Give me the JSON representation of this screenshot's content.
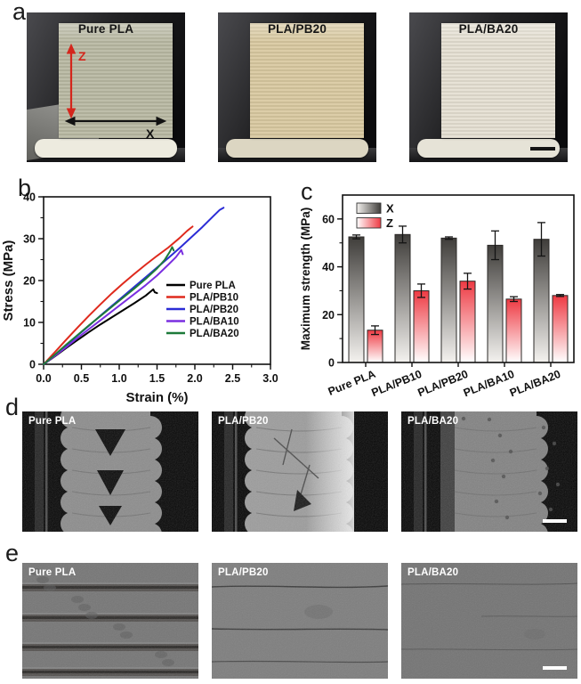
{
  "figure": {
    "background": "#ffffff",
    "panels": {
      "a": {
        "letter": "a",
        "z_arrow_color": "#d4261c",
        "x_arrow_color": "#121212",
        "photos": [
          {
            "title": "Pure PLA",
            "body_color": "#b8b9a3",
            "raft_color": "#edebdf",
            "z_label": "Z",
            "x_label": "X"
          },
          {
            "title": "PLA/PB20",
            "body_color": "#d9c9a1",
            "raft_color": "#dcd6c2"
          },
          {
            "title": "PLA/BA20",
            "body_color": "#e5e0d2",
            "raft_color": "#e6e3d7",
            "has_scale_bar": true
          }
        ]
      },
      "b": {
        "letter": "b"
      },
      "c": {
        "letter": "c"
      },
      "d": {
        "letter": "d",
        "photos": [
          "Pure PLA",
          "PLA/PB20",
          "PLA/BA20"
        ],
        "has_scale_bar": true
      },
      "e": {
        "letter": "e",
        "photos": [
          "Pure PLA",
          "PLA/PB20",
          "PLA/BA20"
        ],
        "has_scale_bar": true
      }
    }
  },
  "chart_data": [
    {
      "id": "stress-strain",
      "type": "line",
      "title": "",
      "xlabel": "Strain (%)",
      "ylabel": "Stress (MPa)",
      "xlim": [
        0,
        3.0
      ],
      "ylim": [
        0,
        40
      ],
      "xticks": [
        "0.0",
        "0.5",
        "1.0",
        "1.5",
        "2.0",
        "2.5",
        "3.0"
      ],
      "yticks": [
        "0",
        "10",
        "20",
        "30",
        "40"
      ],
      "x_minor_step": 0.25,
      "y_minor_step": 5,
      "grid": false,
      "legend_position": "center-right",
      "series": [
        {
          "name": "Pure PLA",
          "color": "#000000",
          "points": [
            [
              0,
              0
            ],
            [
              0.15,
              1.9
            ],
            [
              0.3,
              3.9
            ],
            [
              0.45,
              5.8
            ],
            [
              0.6,
              7.7
            ],
            [
              0.75,
              9.5
            ],
            [
              0.9,
              11.2
            ],
            [
              1.05,
              12.9
            ],
            [
              1.2,
              14.6
            ],
            [
              1.35,
              16.4
            ],
            [
              1.45,
              17.9
            ],
            [
              1.47,
              17.2
            ],
            [
              1.5,
              17.0
            ]
          ]
        },
        {
          "name": "PLA/PB10",
          "color": "#df2a1d",
          "points": [
            [
              0,
              0
            ],
            [
              0.15,
              2.9
            ],
            [
              0.3,
              5.9
            ],
            [
              0.45,
              8.8
            ],
            [
              0.6,
              11.6
            ],
            [
              0.75,
              14.3
            ],
            [
              0.9,
              16.9
            ],
            [
              1.05,
              19.3
            ],
            [
              1.2,
              21.6
            ],
            [
              1.35,
              23.8
            ],
            [
              1.5,
              25.9
            ],
            [
              1.65,
              27.9
            ],
            [
              1.8,
              30.2
            ],
            [
              1.9,
              31.9
            ],
            [
              1.97,
              32.9
            ]
          ]
        },
        {
          "name": "PLA/PB20",
          "color": "#2b2cd6",
          "points": [
            [
              0,
              0
            ],
            [
              0.15,
              2.2
            ],
            [
              0.3,
              4.5
            ],
            [
              0.45,
              6.9
            ],
            [
              0.6,
              9.2
            ],
            [
              0.75,
              11.6
            ],
            [
              0.9,
              13.9
            ],
            [
              1.05,
              16.2
            ],
            [
              1.2,
              18.5
            ],
            [
              1.35,
              20.8
            ],
            [
              1.5,
              23.1
            ],
            [
              1.65,
              25.4
            ],
            [
              1.8,
              27.8
            ],
            [
              1.95,
              30.3
            ],
            [
              2.1,
              32.8
            ],
            [
              2.25,
              35.5
            ],
            [
              2.33,
              36.9
            ],
            [
              2.38,
              37.4
            ]
          ]
        },
        {
          "name": "PLA/BA10",
          "color": "#7a2fe0",
          "points": [
            [
              0,
              0
            ],
            [
              0.15,
              2.0
            ],
            [
              0.3,
              4.1
            ],
            [
              0.45,
              6.3
            ],
            [
              0.6,
              8.4
            ],
            [
              0.75,
              10.5
            ],
            [
              0.9,
              12.6
            ],
            [
              1.05,
              14.7
            ],
            [
              1.2,
              16.8
            ],
            [
              1.35,
              18.9
            ],
            [
              1.5,
              21.2
            ],
            [
              1.65,
              23.8
            ],
            [
              1.75,
              25.6
            ],
            [
              1.82,
              27.3
            ],
            [
              1.84,
              26.3
            ]
          ]
        },
        {
          "name": "PLA/BA20",
          "color": "#1d7a3a",
          "points": [
            [
              0,
              0
            ],
            [
              0.15,
              2.3
            ],
            [
              0.3,
              4.7
            ],
            [
              0.45,
              7.0
            ],
            [
              0.6,
              9.3
            ],
            [
              0.75,
              11.5
            ],
            [
              0.9,
              13.7
            ],
            [
              1.05,
              15.9
            ],
            [
              1.2,
              18.1
            ],
            [
              1.35,
              20.4
            ],
            [
              1.5,
              22.9
            ],
            [
              1.6,
              24.9
            ],
            [
              1.67,
              26.9
            ],
            [
              1.7,
              28.0
            ],
            [
              1.72,
              27.2
            ]
          ]
        }
      ]
    },
    {
      "id": "max-strength",
      "type": "bar",
      "title": "",
      "xlabel": "",
      "ylabel": "Maximum strength (MPa)",
      "categories": [
        "Pure PLA",
        "PLA/PB10",
        "PLA/PB20",
        "PLA/BA10",
        "PLA/BA20"
      ],
      "ylim": [
        0,
        70
      ],
      "yticks": [
        "0",
        "20",
        "40",
        "60"
      ],
      "y_minor_step": 10,
      "grid": false,
      "legend_position": "top-left",
      "series": [
        {
          "name": "X",
          "top_color": "#3f3d3a",
          "bottom_color": "#f4f2ef",
          "values": [
            52.5,
            53.5,
            52.0,
            49.0,
            51.5
          ],
          "errors": [
            0.8,
            3.5,
            0.5,
            6.0,
            7.0
          ]
        },
        {
          "name": "Z",
          "top_color": "#ee3a43",
          "bottom_color": "#ffffff",
          "values": [
            13.5,
            30.0,
            34.0,
            26.5,
            28.0
          ],
          "errors": [
            1.8,
            2.8,
            3.3,
            1.0,
            0.4
          ]
        }
      ]
    }
  ]
}
